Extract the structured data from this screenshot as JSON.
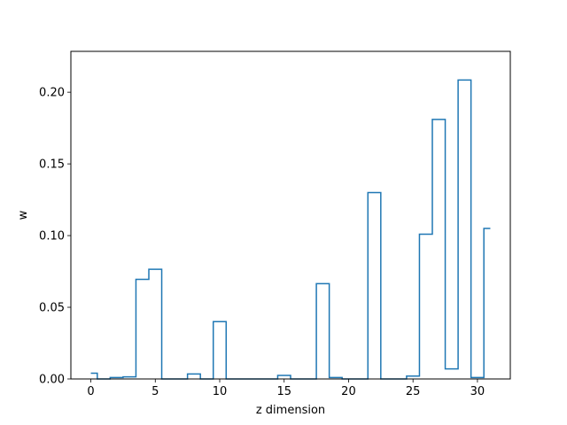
{
  "chart_data": {
    "type": "line",
    "drawstyle": "steps-mid",
    "xlabel": "z dimension",
    "ylabel": "w",
    "xlim": [
      -1.55,
      32.55
    ],
    "ylim": [
      0,
      0.2285
    ],
    "xticks": [
      0,
      5,
      10,
      15,
      20,
      25,
      30
    ],
    "xtick_labels": [
      "0",
      "5",
      "10",
      "15",
      "20",
      "25",
      "30"
    ],
    "yticks": [
      0.0,
      0.05,
      0.1,
      0.15,
      0.2
    ],
    "ytick_labels": [
      "0.00",
      "0.05",
      "0.10",
      "0.15",
      "0.20"
    ],
    "grid": false,
    "series": [
      {
        "color": "#1f77b4",
        "x": [
          0,
          1,
          2,
          3,
          4,
          5,
          6,
          7,
          8,
          9,
          10,
          11,
          12,
          13,
          14,
          15,
          16,
          17,
          18,
          19,
          20,
          21,
          22,
          23,
          24,
          25,
          26,
          27,
          28,
          29,
          30,
          31
        ],
        "values": [
          0.004,
          0.0,
          0.001,
          0.0015,
          0.0695,
          0.0765,
          0.0,
          0.0,
          0.0035,
          0.0,
          0.04,
          0.0,
          0.0,
          0.0,
          0.0,
          0.0025,
          0.0,
          0.0,
          0.0665,
          0.001,
          0.0,
          0.0,
          0.13,
          0.0,
          0.0,
          0.002,
          0.101,
          0.181,
          0.007,
          0.2085,
          0.001,
          0.105
        ]
      }
    ]
  }
}
